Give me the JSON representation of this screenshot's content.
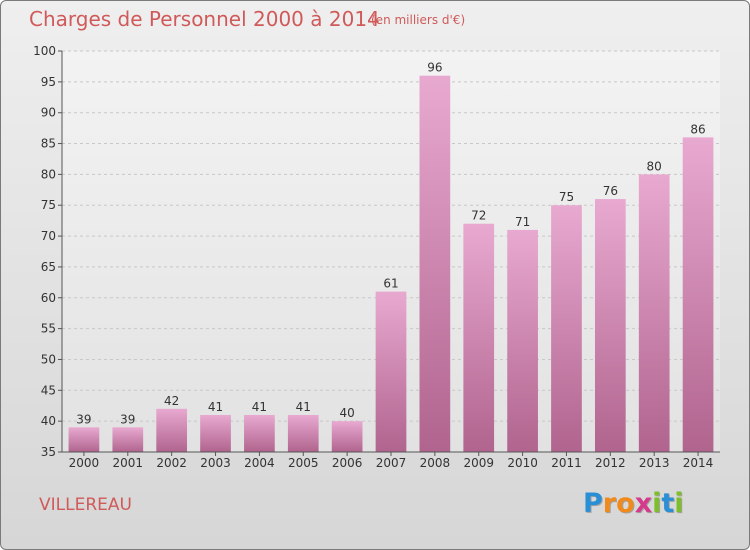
{
  "header": {
    "title": "Charges de Personnel 2000 à 2014",
    "subtitle": "(en milliers d'€)"
  },
  "footer": {
    "commune": "VILLEREAU",
    "logo_letters": [
      "P",
      "r",
      "o",
      "x",
      "i",
      "t",
      "i"
    ],
    "logo_colors": [
      "#2b8fd6",
      "#f08a1c",
      "#f08a1c",
      "#d63a8a",
      "#7cbf2a",
      "#2b8fd6",
      "#7cbf2a"
    ]
  },
  "colors": {
    "bar_light": "#e8a9d0",
    "bar_dark": "#b0648e",
    "axis_text": "#333333",
    "grid": "#c8c8c8"
  },
  "chart_data": {
    "type": "bar",
    "title": "Charges de Personnel 2000 à 2014",
    "subtitle": "(en milliers d'€)",
    "categories": [
      "2000",
      "2001",
      "2002",
      "2003",
      "2004",
      "2005",
      "2006",
      "2007",
      "2008",
      "2009",
      "2010",
      "2011",
      "2012",
      "2013",
      "2014"
    ],
    "values": [
      39,
      39,
      42,
      41,
      41,
      41,
      40,
      61,
      96,
      72,
      71,
      75,
      76,
      80,
      86
    ],
    "ylim": [
      35,
      100
    ],
    "yticks": [
      35,
      40,
      45,
      50,
      55,
      60,
      65,
      70,
      75,
      80,
      85,
      90,
      95,
      100
    ],
    "grid": true,
    "data_labels": true
  }
}
